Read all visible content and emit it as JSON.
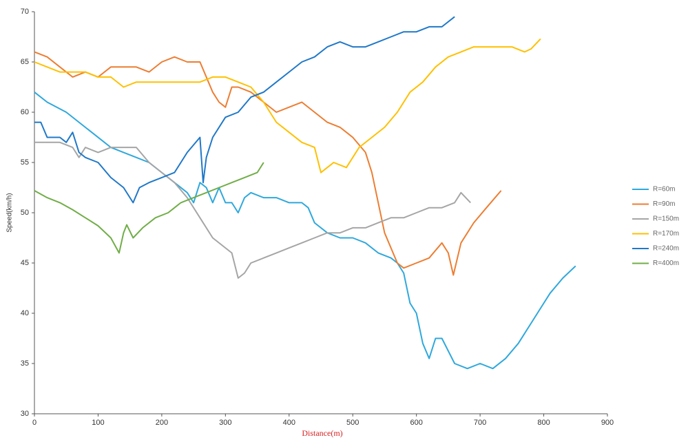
{
  "chart_data": {
    "type": "line",
    "x_label": "Distance(m)",
    "y_label": "Speed(km/h)",
    "xlim": [
      0,
      900
    ],
    "xticks": [
      0,
      100,
      200,
      300,
      400,
      500,
      600,
      700,
      800,
      900
    ],
    "ylim": [
      30,
      70
    ],
    "yticks": [
      30,
      35,
      40,
      45,
      50,
      55,
      60,
      65,
      70
    ],
    "grid": false,
    "legend": "right",
    "series": [
      {
        "name": "R=60m",
        "color": "#2ea8dc",
        "x": [
          0,
          20,
          50,
          70,
          90,
          110,
          120,
          140,
          160,
          180,
          200,
          220,
          240,
          250,
          260,
          270,
          280,
          290,
          300,
          310,
          320,
          330,
          340,
          360,
          380,
          400,
          420,
          430,
          440,
          460,
          480,
          500,
          520,
          540,
          560,
          570,
          580,
          590,
          600,
          610,
          620,
          630,
          640,
          660,
          680,
          700,
          720,
          740,
          760,
          780,
          800,
          810,
          830,
          850
        ],
        "values": [
          62,
          61,
          60,
          59,
          58,
          57,
          56.5,
          56,
          55.5,
          55,
          54,
          53,
          52,
          51,
          53,
          52.5,
          51,
          52.5,
          51,
          51,
          50,
          51.5,
          52,
          51.5,
          51.5,
          51,
          51,
          50.5,
          49,
          48,
          47.5,
          47.5,
          47,
          46,
          45.5,
          45,
          44,
          41,
          40,
          37,
          35.5,
          37.5,
          37.5,
          35,
          34.5,
          35,
          34.5,
          35.5,
          37,
          39,
          41,
          42,
          43.5,
          44.7
        ]
      },
      {
        "name": "R=90m",
        "color": "#ed7d31",
        "x": [
          0,
          20,
          40,
          60,
          80,
          100,
          120,
          140,
          160,
          180,
          200,
          220,
          240,
          260,
          270,
          280,
          290,
          300,
          310,
          320,
          340,
          360,
          380,
          400,
          420,
          440,
          460,
          480,
          500,
          520,
          530,
          540,
          550,
          560,
          570,
          580,
          600,
          620,
          640,
          650,
          658,
          670,
          690,
          710,
          733
        ],
        "values": [
          66,
          65.5,
          64.5,
          63.5,
          64,
          63.5,
          64.5,
          64.5,
          64.5,
          64,
          65,
          65.5,
          65,
          65,
          63.5,
          62,
          61,
          60.5,
          62.5,
          62.5,
          62,
          61,
          60,
          60.5,
          61,
          60,
          59,
          58.5,
          57.5,
          56,
          54,
          51,
          48,
          46.5,
          45,
          44.5,
          45,
          45.5,
          47,
          46,
          43.8,
          47,
          49,
          50.5,
          52.2
        ]
      },
      {
        "name": "R=150m",
        "color": "#a5a5a5",
        "x": [
          0,
          20,
          40,
          60,
          70,
          80,
          100,
          120,
          140,
          160,
          180,
          200,
          220,
          240,
          260,
          280,
          300,
          310,
          320,
          330,
          340,
          360,
          380,
          400,
          420,
          440,
          460,
          480,
          500,
          520,
          540,
          560,
          580,
          600,
          620,
          640,
          660,
          670,
          685
        ],
        "values": [
          57,
          57,
          57,
          56.5,
          55.5,
          56.5,
          56,
          56.5,
          56.5,
          56.5,
          55,
          54,
          53,
          51.5,
          49.5,
          47.5,
          46.5,
          46,
          43.5,
          44,
          45,
          45.5,
          46,
          46.5,
          47,
          47.5,
          48,
          48,
          48.5,
          48.5,
          49,
          49.5,
          49.5,
          50,
          50.5,
          50.5,
          51,
          52,
          51
        ]
      },
      {
        "name": "R=170m",
        "color": "#ffc000",
        "x": [
          0,
          20,
          40,
          60,
          80,
          100,
          120,
          140,
          160,
          180,
          200,
          220,
          240,
          260,
          280,
          300,
          320,
          340,
          360,
          380,
          400,
          420,
          440,
          450,
          460,
          470,
          490,
          510,
          530,
          550,
          570,
          590,
          610,
          630,
          650,
          670,
          690,
          710,
          730,
          750,
          770,
          780,
          795
        ],
        "values": [
          65,
          64.5,
          64,
          64,
          64,
          63.5,
          63.5,
          62.5,
          63,
          63,
          63,
          63,
          63,
          63,
          63.5,
          63.5,
          63,
          62.5,
          61,
          59,
          58,
          57,
          56.5,
          54,
          54.5,
          55,
          54.5,
          56.5,
          57.5,
          58.5,
          60,
          62,
          63,
          64.5,
          65.5,
          66,
          66.5,
          66.5,
          66.5,
          66.5,
          66,
          66.3,
          67.3
        ]
      },
      {
        "name": "R=240m",
        "color": "#1f78c8",
        "x": [
          0,
          10,
          20,
          40,
          50,
          60,
          70,
          80,
          100,
          120,
          140,
          155,
          165,
          180,
          200,
          220,
          240,
          260,
          265,
          270,
          280,
          300,
          320,
          340,
          360,
          380,
          400,
          420,
          440,
          460,
          480,
          500,
          520,
          540,
          560,
          580,
          600,
          620,
          640,
          660
        ],
        "values": [
          59,
          59,
          57.5,
          57.5,
          57,
          58,
          56,
          55.5,
          55,
          53.5,
          52.5,
          51,
          52.5,
          53,
          53.5,
          54,
          56,
          57.5,
          53,
          55.5,
          57.5,
          59.5,
          60,
          61.5,
          62,
          63,
          64,
          65,
          65.5,
          66.5,
          67,
          66.5,
          66.5,
          67,
          67.5,
          68,
          68,
          68.5,
          68.5,
          69.5
        ]
      },
      {
        "name": "R=400m",
        "color": "#70ad47",
        "x": [
          0,
          20,
          40,
          60,
          80,
          100,
          120,
          133,
          140,
          145,
          155,
          170,
          190,
          210,
          230,
          250,
          270,
          290,
          310,
          330,
          350,
          360
        ],
        "values": [
          52.2,
          51.5,
          51,
          50.3,
          49.5,
          48.7,
          47.5,
          46,
          48,
          48.8,
          47.5,
          48.5,
          49.5,
          50,
          51,
          51.5,
          52,
          52.5,
          53,
          53.5,
          54,
          55
        ]
      }
    ]
  }
}
